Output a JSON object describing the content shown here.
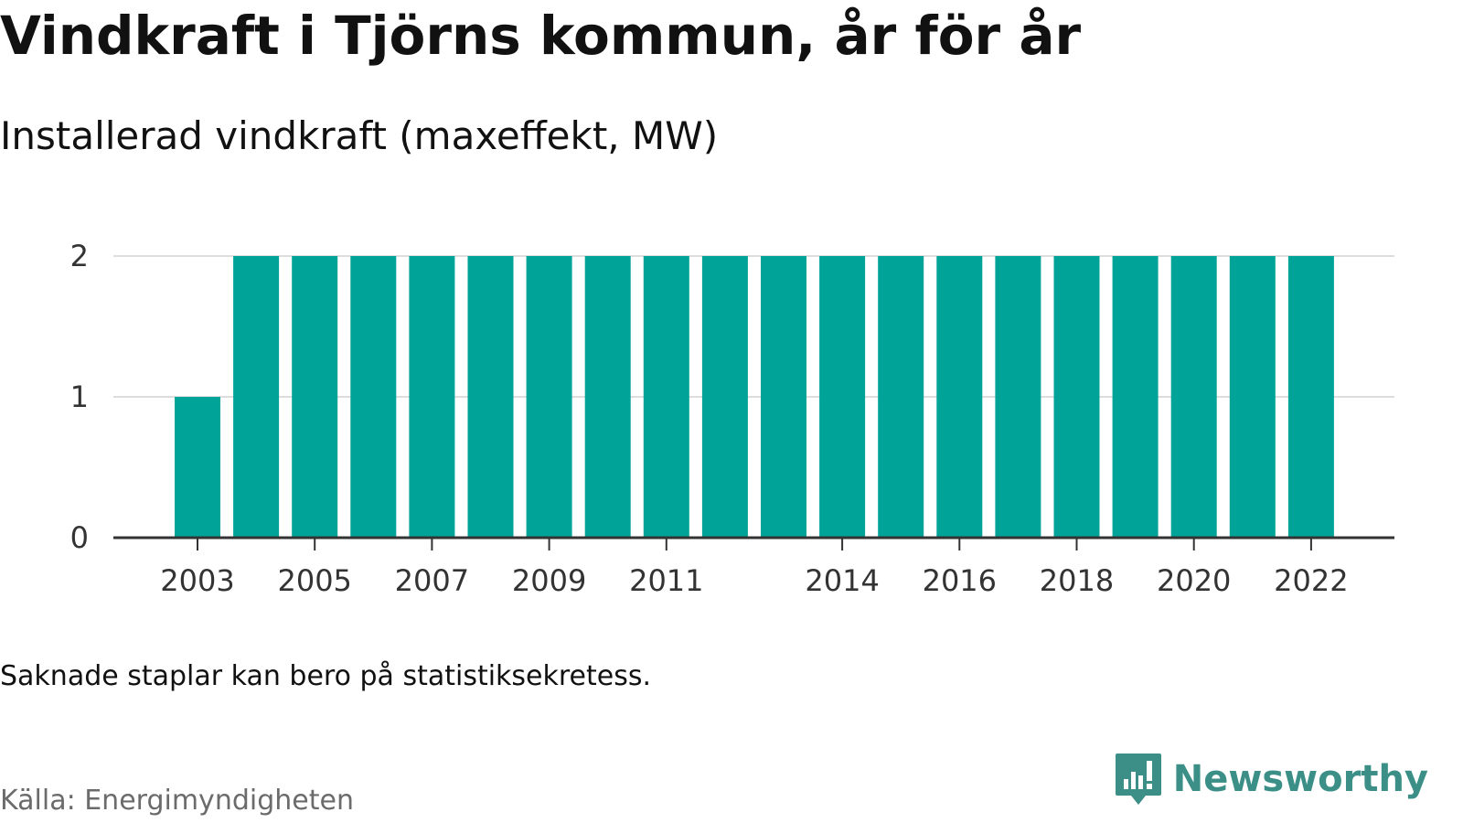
{
  "header": {
    "title": "Vindkraft i Tjörns kommun, år för år",
    "subtitle": "Installerad vindkraft (maxeffekt, MW)"
  },
  "footer": {
    "note": "Saknade staplar kan bero på statistiksekretess.",
    "source": "Källa: Energimyndigheten",
    "brand": "Newsworthy"
  },
  "colors": {
    "bar": "#00a398",
    "grid": "#dddddd",
    "axis": "#333333",
    "brand": "#3b8f87"
  },
  "chart_data": {
    "type": "bar",
    "title": "Vindkraft i Tjörns kommun, år för år",
    "subtitle": "Installerad vindkraft (maxeffekt, MW)",
    "xlabel": "",
    "ylabel": "",
    "categories": [
      2003,
      2004,
      2005,
      2006,
      2007,
      2008,
      2009,
      2010,
      2011,
      2012,
      2013,
      2014,
      2015,
      2016,
      2017,
      2018,
      2019,
      2020,
      2021,
      2022
    ],
    "values": [
      1,
      2,
      2,
      2,
      2,
      2,
      2,
      2,
      2,
      2,
      2,
      2,
      2,
      2,
      2,
      2,
      2,
      2,
      2,
      2
    ],
    "ylim": [
      0,
      2
    ],
    "yticks": [
      0,
      1,
      2
    ],
    "xticks": [
      2003,
      2005,
      2007,
      2009,
      2011,
      2014,
      2016,
      2018,
      2020,
      2022
    ],
    "grid": true,
    "legend": "none"
  }
}
